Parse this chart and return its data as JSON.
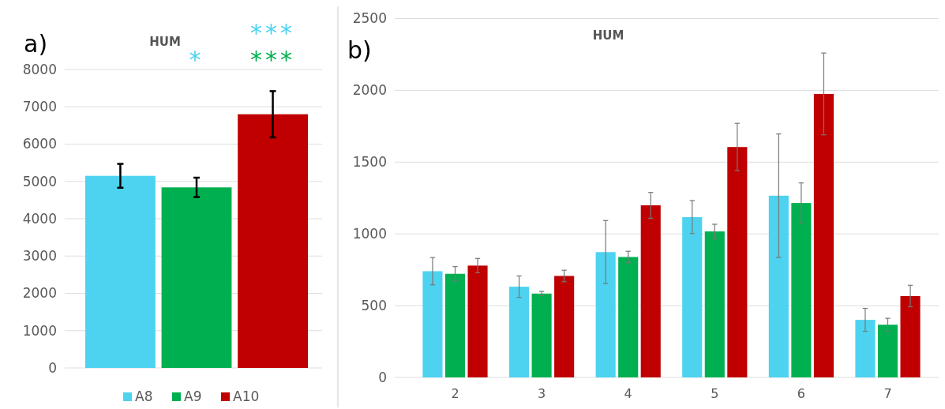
{
  "chart_data": [
    {
      "type": "bar",
      "title": "HUM",
      "categories": [
        null
      ],
      "series": [
        {
          "name": "A8",
          "color": "#4dd3f0",
          "values": [
            5150
          ],
          "errors": [
            320
          ]
        },
        {
          "name": "A9",
          "color": "#00b050",
          "values": [
            4840
          ],
          "errors": [
            260
          ]
        },
        {
          "name": "A10",
          "color": "#c00000",
          "values": [
            6800
          ],
          "errors": [
            620
          ]
        }
      ],
      "ylim": [
        0,
        8000
      ],
      "yticks": [
        0,
        1000,
        2000,
        3000,
        4000,
        5000,
        6000,
        7000,
        8000
      ],
      "grid": "y",
      "legend": "bottom",
      "annotations": [
        "a)",
        "***",
        "***",
        "*"
      ]
    },
    {
      "type": "bar",
      "title": "HUM",
      "categories": [
        "2",
        "3",
        "4",
        "5",
        "6",
        "7"
      ],
      "series": [
        {
          "color": "#4dd3f0",
          "values": [
            740,
            632,
            873,
            1117,
            1266,
            401
          ],
          "errors": [
            95,
            75,
            220,
            115,
            430,
            80
          ]
        },
        {
          "color": "#00b050",
          "values": [
            722,
            584,
            839,
            1017,
            1215,
            367
          ],
          "errors": [
            50,
            15,
            40,
            50,
            140,
            45
          ]
        },
        {
          "color": "#c00000",
          "values": [
            779,
            707,
            1199,
            1605,
            1975,
            567
          ],
          "errors": [
            50,
            40,
            90,
            165,
            285,
            75
          ]
        }
      ],
      "ylim": [
        0,
        2500
      ],
      "yticks": [
        0,
        500,
        1000,
        1500,
        2000,
        2500
      ],
      "grid": "y",
      "annotations": [
        "b)"
      ]
    }
  ]
}
